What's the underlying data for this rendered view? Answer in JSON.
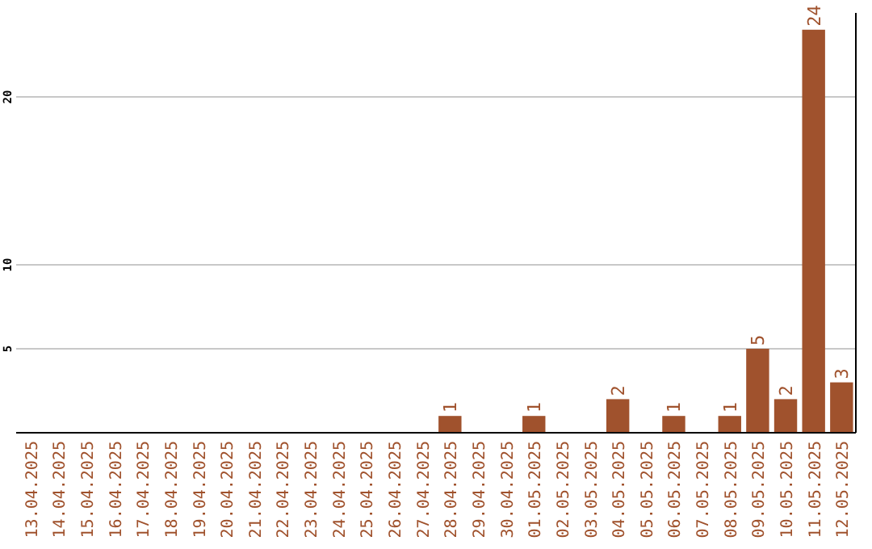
{
  "chart_data": {
    "type": "bar",
    "categories": [
      "13.04.2025",
      "14.04.2025",
      "15.04.2025",
      "16.04.2025",
      "17.04.2025",
      "18.04.2025",
      "19.04.2025",
      "20.04.2025",
      "21.04.2025",
      "22.04.2025",
      "23.04.2025",
      "24.04.2025",
      "25.04.2025",
      "26.04.2025",
      "27.04.2025",
      "28.04.2025",
      "29.04.2025",
      "30.04.2025",
      "01.05.2025",
      "02.05.2025",
      "03.05.2025",
      "04.05.2025",
      "05.05.2025",
      "06.05.2025",
      "07.05.2025",
      "08.05.2025",
      "09.05.2025",
      "10.05.2025",
      "11.05.2025",
      "12.05.2025"
    ],
    "values": [
      0,
      0,
      0,
      0,
      0,
      0,
      0,
      0,
      0,
      0,
      0,
      0,
      0,
      0,
      0,
      1,
      0,
      0,
      1,
      0,
      0,
      2,
      0,
      1,
      0,
      1,
      5,
      2,
      24,
      3
    ],
    "value_labels": [
      null,
      null,
      null,
      null,
      null,
      null,
      null,
      null,
      null,
      null,
      null,
      null,
      null,
      null,
      null,
      "1",
      null,
      null,
      "1",
      null,
      null,
      "2",
      null,
      "1",
      null,
      "1",
      "5",
      "2",
      "24",
      "3"
    ],
    "color": "#a0522d",
    "ylim": [
      0,
      25
    ],
    "yticks": [
      5,
      10,
      20
    ],
    "grid": "y"
  }
}
